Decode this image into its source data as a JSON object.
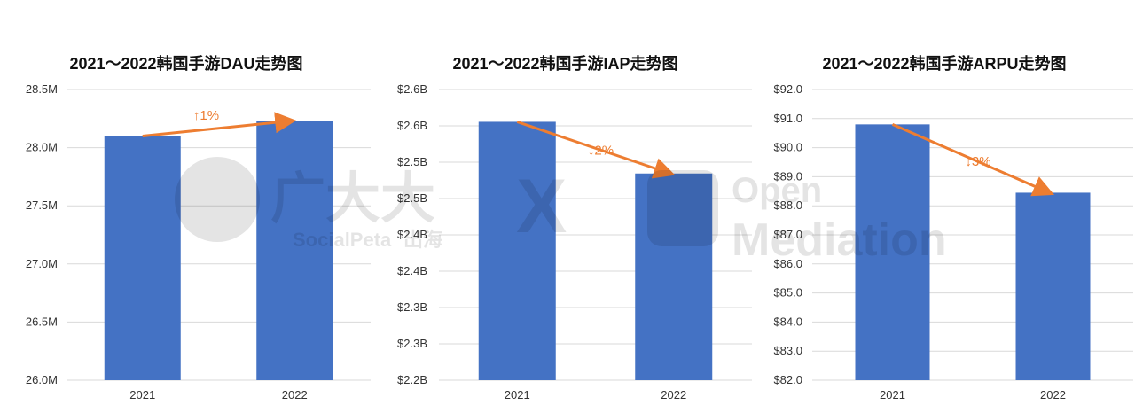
{
  "colors": {
    "bar": "#4472C4",
    "arrow": "#ED7D31",
    "grid": "#D9D9D9",
    "text": "#333333"
  },
  "watermark": {
    "brand_cn": "广大大",
    "brand_en": "SocialPeta",
    "brand_en_cn": "出海",
    "cross": "X",
    "partner_line1": "Open",
    "partner_line2": "Mediation"
  },
  "chart_data": [
    {
      "type": "bar",
      "title": "2021～2022韩国手游DAU走势图",
      "categories": [
        "2021",
        "2022"
      ],
      "values": [
        28.1,
        28.23
      ],
      "ylim": [
        26.0,
        28.5
      ],
      "yticks": [
        "26.0M",
        "26.5M",
        "27.0M",
        "27.5M",
        "28.0M",
        "28.5M"
      ],
      "grid": true,
      "annotation": {
        "label": "↑1%",
        "direction": "up"
      }
    },
    {
      "type": "bar",
      "title": "2021～2022韩国手游IAP走势图",
      "categories": [
        "2021",
        "2022"
      ],
      "values": [
        2.6,
        2.52
      ],
      "ylim": [
        2.2,
        2.65
      ],
      "yticks": [
        "$2.2B",
        "$2.3B",
        "$2.3B",
        "$2.4B",
        "$2.4B",
        "$2.5B",
        "$2.5B",
        "$2.6B",
        "$2.6B"
      ],
      "grid": true,
      "annotation": {
        "label": "↓2%",
        "direction": "down"
      }
    },
    {
      "type": "bar",
      "title": "2021～2022韩国手游ARPU走势图",
      "categories": [
        "2021",
        "2022"
      ],
      "values": [
        90.8,
        88.45
      ],
      "ylim": [
        82.0,
        92.0
      ],
      "yticks": [
        "$82.0",
        "$83.0",
        "$84.0",
        "$85.0",
        "$86.0",
        "$87.0",
        "$88.0",
        "$89.0",
        "$90.0",
        "$91.0",
        "$92.0"
      ],
      "grid": true,
      "annotation": {
        "label": "↓3%",
        "direction": "down"
      }
    }
  ]
}
